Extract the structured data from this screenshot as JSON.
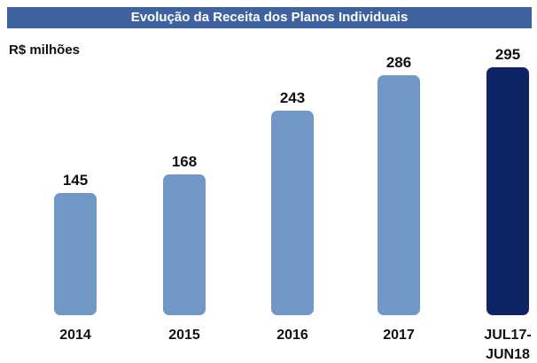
{
  "chart_data": {
    "type": "bar",
    "title": "Evolução da Receita dos Planos Individuais",
    "subtitle": "R$ milhões",
    "categories": [
      "2014",
      "2015",
      "2016",
      "2017",
      "JUL17-JUN18"
    ],
    "values": [
      145,
      168,
      243,
      286,
      295
    ],
    "colors": [
      "#7097c6",
      "#7097c6",
      "#7097c6",
      "#7097c6",
      "#0e2464"
    ]
  }
}
